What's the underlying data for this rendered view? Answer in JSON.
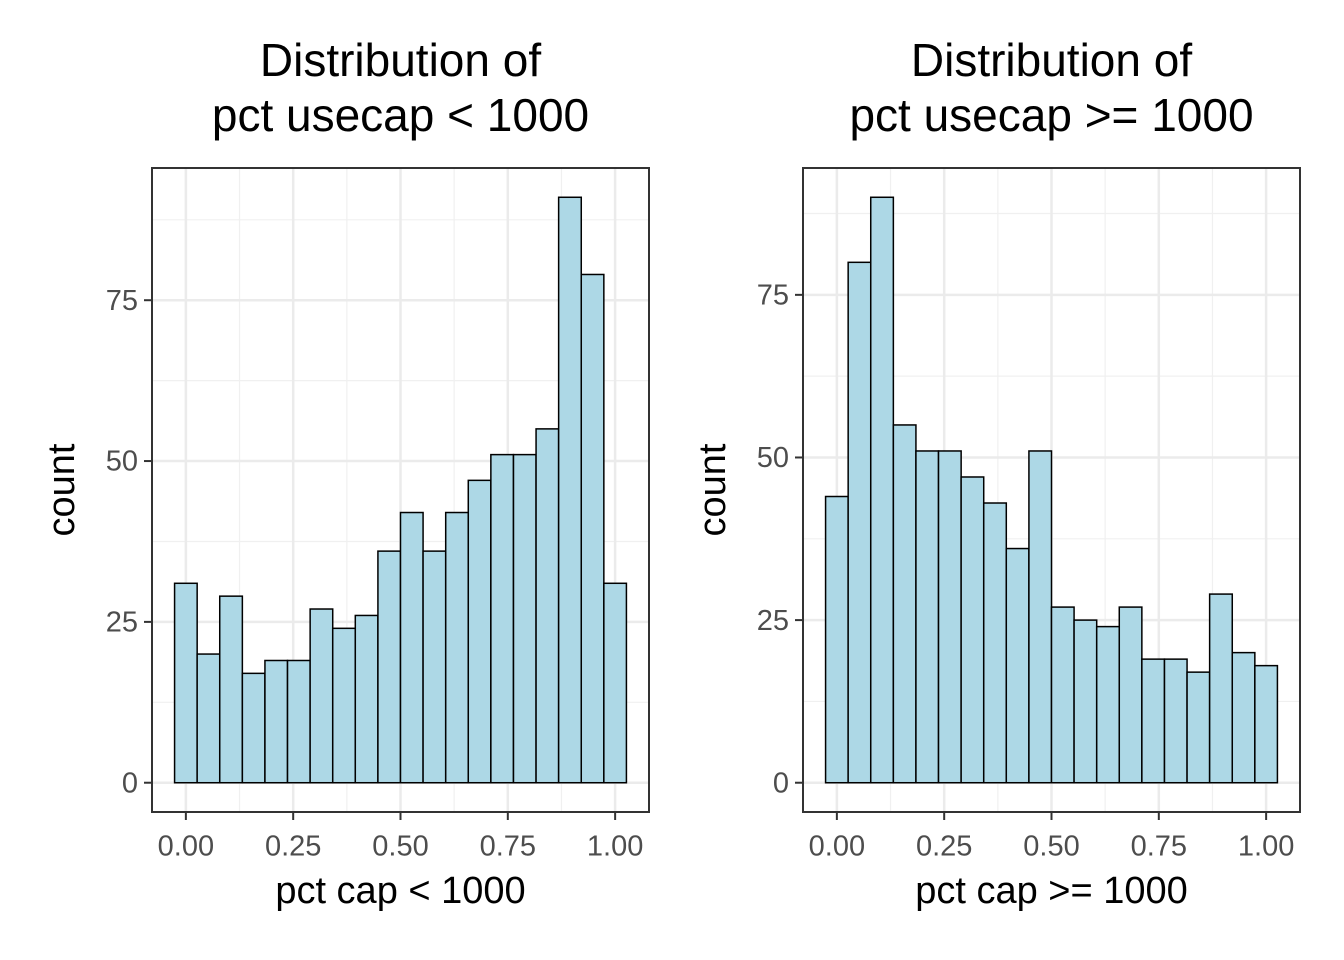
{
  "chart_data": [
    {
      "type": "histogram",
      "title": [
        "Distribution of",
        "pct usecap < 1000"
      ],
      "x_label": "pct cap < 1000",
      "y_label": "count",
      "bins": [
        -0.0263,
        0.0263,
        0.0789,
        0.1316,
        0.1842,
        0.2368,
        0.2895,
        0.3421,
        0.3947,
        0.4474,
        0.5,
        0.5526,
        0.6053,
        0.6579,
        0.7105,
        0.7632,
        0.8158,
        0.8684,
        0.9211,
        0.9737,
        1.0263
      ],
      "values": [
        31,
        20,
        29,
        17,
        19,
        19,
        27,
        24,
        26,
        36,
        42,
        36,
        42,
        47,
        51,
        51,
        55,
        91,
        79,
        31
      ],
      "color": "#add8e6",
      "grid": true,
      "xlim": [
        -0.0789,
        1.0789
      ],
      "ylim": [
        -4.55,
        95.55
      ],
      "xticks": [
        {
          "value": 0,
          "label": "0.00"
        },
        {
          "value": 0.25,
          "label": "0.25"
        },
        {
          "value": 0.5,
          "label": "0.50"
        },
        {
          "value": 0.75,
          "label": "0.75"
        },
        {
          "value": 1,
          "label": "1.00"
        }
      ],
      "yticks": [
        0,
        25,
        50,
        75
      ]
    },
    {
      "type": "histogram",
      "title": [
        "Distribution of",
        "pct usecap >= 1000"
      ],
      "x_label": "pct cap >= 1000",
      "y_label": "count",
      "bins": [
        -0.0263,
        0.0263,
        0.0789,
        0.1316,
        0.1842,
        0.2368,
        0.2895,
        0.3421,
        0.3947,
        0.4474,
        0.5,
        0.5526,
        0.6053,
        0.6579,
        0.7105,
        0.7632,
        0.8158,
        0.8684,
        0.9211,
        0.9737,
        1.0263
      ],
      "values": [
        44,
        80,
        90,
        55,
        51,
        51,
        47,
        43,
        36,
        51,
        27,
        25,
        24,
        27,
        19,
        19,
        17,
        29,
        20,
        18
      ],
      "color": "#add8e6",
      "grid": true,
      "xlim": [
        -0.0789,
        1.0789
      ],
      "ylim": [
        -4.5,
        94.5
      ],
      "xticks": [
        {
          "value": 0,
          "label": "0.00"
        },
        {
          "value": 0.25,
          "label": "0.25"
        },
        {
          "value": 0.5,
          "label": "0.50"
        },
        {
          "value": 0.75,
          "label": "0.75"
        },
        {
          "value": 1,
          "label": "1.00"
        }
      ],
      "yticks": [
        0,
        25,
        50,
        75
      ]
    }
  ]
}
